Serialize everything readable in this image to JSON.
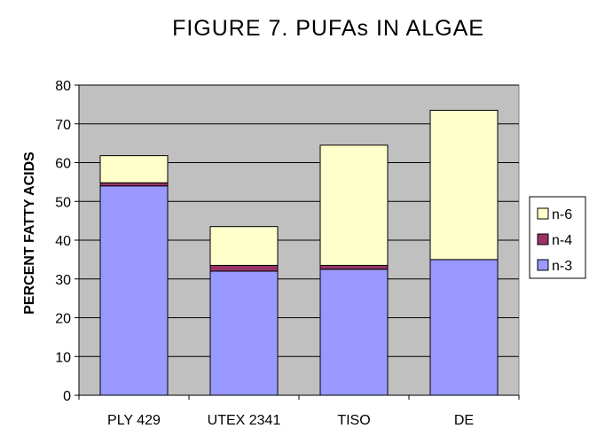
{
  "chart_data": {
    "type": "bar",
    "stacked": true,
    "title": "FIGURE 7. PUFAs IN ALGAE",
    "xlabel": "",
    "ylabel": "PERCENT FATTY ACIDS",
    "ylim": [
      0,
      80
    ],
    "yticks": [
      0,
      10,
      20,
      30,
      40,
      50,
      60,
      70,
      80
    ],
    "grid": true,
    "legend_position": "right",
    "categories": [
      "PLY 429",
      "UTEX 2341",
      "TISO",
      "DE"
    ],
    "series": [
      {
        "name": "n-3",
        "values": [
          54,
          32,
          32.5,
          35
        ],
        "color": "#9999ff"
      },
      {
        "name": "n-4",
        "values": [
          0.8,
          1.5,
          1,
          0
        ],
        "color": "#993366"
      },
      {
        "name": "n-6",
        "values": [
          7,
          10,
          31,
          38.5
        ],
        "color": "#ffffcc"
      }
    ],
    "plot_background": "#c0c0c0"
  }
}
